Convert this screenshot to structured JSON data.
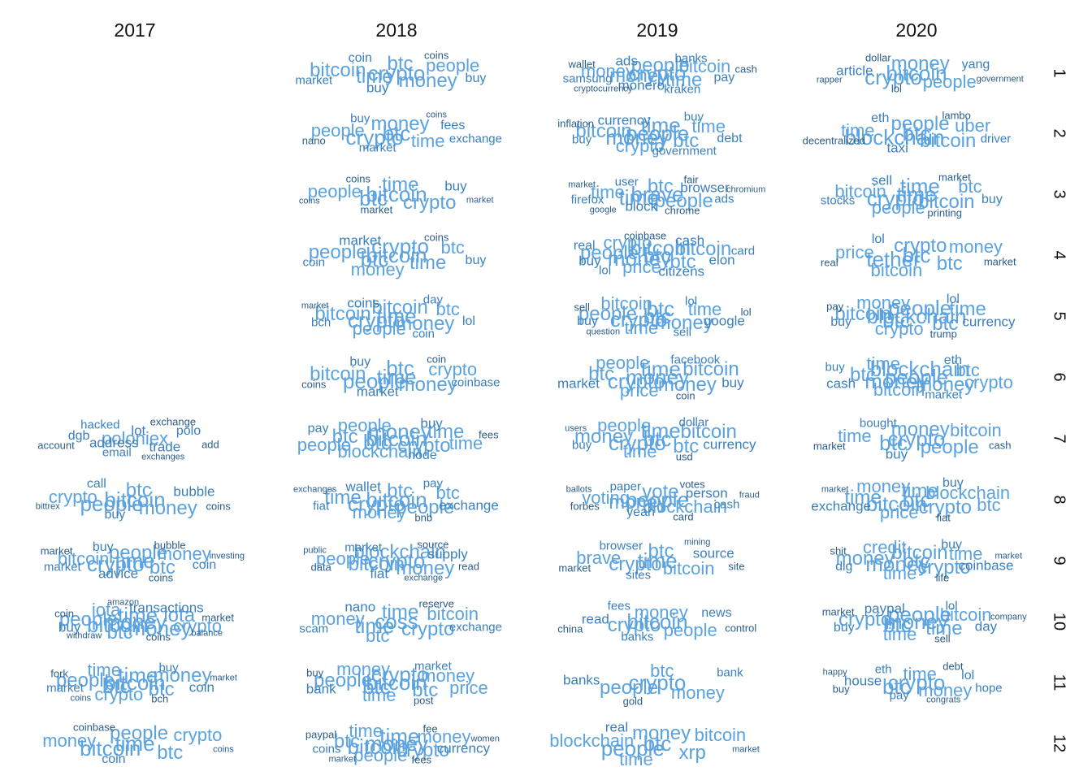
{
  "years": [
    "2017",
    "2018",
    "2019",
    "2020"
  ],
  "months": [
    "1",
    "2",
    "3",
    "4",
    "5",
    "6",
    "7",
    "8",
    "9",
    "10",
    "11",
    "12"
  ],
  "palette": {
    "light": "#5ba3e0",
    "mid": "#3a7fbd",
    "dark": "#2a5c8a"
  },
  "clouds": {
    "2017": {
      "7": [
        "exchanges",
        "add",
        "email",
        "address",
        "dgb",
        "account",
        "poloniex",
        "lot",
        "polo",
        "exchange",
        "hacked",
        "trade"
      ],
      "8": [
        "buy",
        "btc",
        "bitcoin",
        "bubble",
        "bittrex",
        "people",
        "crypto",
        "money",
        "call",
        "coins"
      ],
      "9": [
        "buy",
        "bubble",
        "market",
        "bitcoin",
        "investing",
        "time",
        "money",
        "people",
        "crypto",
        "coins",
        "btc",
        "advice",
        "coin",
        "market"
      ],
      "10": [
        "withdraw",
        "coins",
        "money",
        "buy",
        "people",
        "coin",
        "iota",
        "iota",
        "bitcoin",
        "crypto",
        "btc",
        "time",
        "amazon",
        "market",
        "money",
        "transactions",
        "balance"
      ],
      "11": [
        "crypto",
        "bch",
        "market",
        "coin",
        "market",
        "fork",
        "buy",
        "btc",
        "bitcoin",
        "time",
        "people",
        "btc",
        "coins",
        "money",
        "time"
      ],
      "12": [
        "coin",
        "coinbase",
        "time",
        "money",
        "people",
        "bitcoin",
        "crypto",
        "btc",
        "coins"
      ]
    },
    "2018": {
      "1": [
        "coin",
        "time",
        "market",
        "buy",
        "btc",
        "crypto",
        "people",
        "money",
        "buy",
        "coins",
        "bitcoin"
      ],
      "2": [
        "coins",
        "nano",
        "market",
        "time",
        "fees",
        "btc",
        "buy",
        "money",
        "crypto",
        "people",
        "exchange"
      ],
      "3": [
        "market",
        "market",
        "bitcoin",
        "buy",
        "time",
        "btc",
        "people",
        "crypto",
        "coins",
        "coins"
      ],
      "4": [
        "btc",
        "time",
        "bitcoin",
        "market",
        "buy",
        "btc",
        "money",
        "people",
        "crypto",
        "coins",
        "coin"
      ],
      "5": [
        "lol",
        "bitcoin",
        "bch",
        "btc",
        "money",
        "time",
        "day",
        "bitcoin",
        "crypto",
        "people",
        "coin",
        "coins",
        "market"
      ],
      "6": [
        "buy",
        "coins",
        "time",
        "market",
        "money",
        "people",
        "crypto",
        "bitcoin",
        "btc",
        "coin",
        "coinbase"
      ],
      "7": [
        "node",
        "fees",
        "bitcoin",
        "blockchain",
        "pay",
        "btc",
        "people",
        "crypto",
        "money",
        "time",
        "btc",
        "buy",
        "people",
        "time"
      ],
      "8": [
        "btc",
        "bnb",
        "fiat",
        "wallet",
        "btc",
        "bitcoin",
        "pay",
        "people",
        "crypto",
        "money",
        "time",
        "exchange",
        "exchanges"
      ],
      "9": [
        "exchange",
        "read",
        "market",
        "supply",
        "bitcoin",
        "data",
        "people",
        "blockchain",
        "crypto",
        "source",
        "money",
        "fiat",
        "public"
      ],
      "10": [
        "money",
        "time",
        "exchange",
        "bitcoin",
        "crypto",
        "coss",
        "btc",
        "nano",
        "time",
        "reserve",
        "scam"
      ],
      "11": [
        "money",
        "post",
        "bitcoin",
        "time",
        "btc",
        "btc",
        "money",
        "people",
        "crypto",
        "buy",
        "market",
        "bank",
        "price"
      ],
      "12": [
        "money",
        "fee",
        "money",
        "currency",
        "women",
        "fees",
        "people",
        "crypto",
        "bitcoin",
        "time",
        "btc",
        "time",
        "market",
        "paypal",
        "coins"
      ]
    },
    "2019": {
      "1": [
        "cryptocurrency",
        "money",
        "samsung",
        "monero",
        "pay",
        "wallet",
        "banks",
        "people",
        "crypto",
        "money",
        "time",
        "ads",
        "bitcoin",
        "cash",
        "kraken"
      ],
      "2": [
        "time",
        "inflation",
        "buy",
        "currency",
        "btc",
        "people",
        "buy",
        "bitcoin",
        "money",
        "crypto",
        "government",
        "time",
        "debt"
      ],
      "3": [
        "market",
        "btc",
        "user",
        "time",
        "chromium",
        "fair",
        "ads",
        "browser",
        "brave",
        "chrome",
        "firefox",
        "block",
        "google",
        "people",
        "time"
      ],
      "4": [
        "price",
        "coinbase",
        "card",
        "elon",
        "btc",
        "btc",
        "lol",
        "buy",
        "money",
        "crypto",
        "people",
        "cash",
        "real",
        "bitcoin",
        "bitcoin",
        "citizens"
      ],
      "5": [
        "time",
        "money",
        "lol",
        "time",
        "question",
        "btc",
        "bitcoin",
        "people",
        "crypto",
        "sell",
        "sell",
        "google",
        "buy",
        "lol",
        "btc"
      ],
      "6": [
        "price",
        "money",
        "money",
        "buy",
        "btc",
        "crypto",
        "people",
        "bitcoin",
        "time",
        "coin",
        "facebook",
        "market"
      ],
      "7": [
        "time",
        "btc",
        "buy",
        "currency",
        "money",
        "btc",
        "people",
        "bitcoin",
        "crypto",
        "usd",
        "dollar",
        "time",
        "users"
      ],
      "8": [
        "yeah",
        "money",
        "paper",
        "blockchain",
        "ballots",
        "forbes",
        "voting",
        "vote",
        "people",
        "votes",
        "cash",
        "person",
        "fraud",
        "card"
      ],
      "9": [
        "mining",
        "site",
        "sites",
        "source",
        "crypto",
        "market",
        "bitcoin",
        "btc",
        "time",
        "brave",
        "browser"
      ],
      "10": [
        "money",
        "control",
        "banks",
        "people",
        "crypto",
        "bitcoin",
        "fees",
        "read",
        "news",
        "china"
      ],
      "11": [
        "btc",
        "gold",
        "bank",
        "banks",
        "people",
        "crypto",
        "money"
      ],
      "12": [
        "blockchain",
        "money",
        "btc",
        "bitcoin",
        "xrp",
        "people",
        "time",
        "real",
        "market"
      ]
    },
    "2020": {
      "1": [
        "government",
        "lol",
        "bitcoin",
        "article",
        "yang",
        "crypto",
        "people",
        "money",
        "rapper",
        "dollar"
      ],
      "2": [
        "time",
        "decentralized",
        "btc",
        "taxi",
        "people",
        "blockchain",
        "uber",
        "bitcoin",
        "eth",
        "lambo",
        "driver"
      ],
      "3": [
        "bitcoin",
        "market",
        "time",
        "btc",
        "buy",
        "crypto",
        "people",
        "bitcoin",
        "time",
        "printing",
        "stocks",
        "sell"
      ],
      "4": [
        "price",
        "market",
        "btc",
        "money",
        "crypto",
        "tether",
        "bitcoin",
        "btc",
        "lol",
        "real"
      ],
      "5": [
        "buy",
        "trump",
        "blockchain",
        "crypto",
        "btc",
        "btc",
        "money",
        "bitcoin",
        "people",
        "pay",
        "time",
        "currency",
        "lol"
      ],
      "6": [
        "btc",
        "money",
        "market",
        "cash",
        "eth",
        "people",
        "bitcoin",
        "btc",
        "money",
        "time",
        "buy",
        "blockchain",
        "crypto"
      ],
      "7": [
        "time",
        "cash",
        "bought",
        "buy",
        "money",
        "crypto",
        "bitcoin",
        "people",
        "btc",
        "market"
      ],
      "8": [
        "blockchain",
        "time",
        "btc",
        "price",
        "buy",
        "fiat",
        "money",
        "crypto",
        "bitcoin",
        "btc",
        "time",
        "exchange",
        "market"
      ],
      "9": [
        "time",
        "bitcoin",
        "btc",
        "time",
        "dig",
        "money",
        "credit",
        "crypto",
        "buy",
        "life",
        "money",
        "coinbase",
        "market",
        "shit"
      ],
      "10": [
        "company",
        "time",
        "money",
        "paypal",
        "buy",
        "btc",
        "bitcoin",
        "crypto",
        "people",
        "sell",
        "lol",
        "day",
        "time",
        "market"
      ],
      "11": [
        "lol",
        "buy",
        "pay",
        "time",
        "congrats",
        "debt",
        "eth",
        "house",
        "crypto",
        "money",
        "hope",
        "btc",
        "happy"
      ]
    }
  }
}
